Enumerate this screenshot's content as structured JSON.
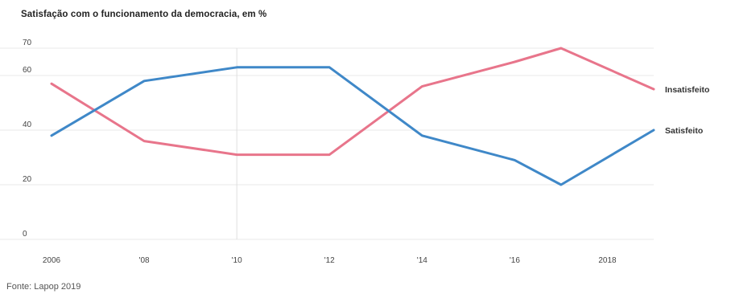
{
  "title": "Satisfação com o funcionamento da democracia, em %",
  "source": "Fonte: Lapop 2019",
  "colors": {
    "insatisfeito": "#e8758b",
    "satisfeito": "#3f88c8",
    "grid": "#e8e8e8",
    "highlight": "#dedede"
  },
  "chart_data": {
    "type": "line",
    "x": [
      2006,
      2008,
      2010,
      2012,
      2014,
      2016,
      2017,
      2019
    ],
    "x_ticks": [
      2006,
      2008,
      2010,
      2012,
      2014,
      2016,
      2018
    ],
    "x_tick_labels": [
      "2006",
      "'08",
      "'10",
      "'12",
      "'14",
      "'16",
      "2018"
    ],
    "y_ticks": [
      0,
      20,
      40,
      60,
      70
    ],
    "y_tick_labels": [
      "0",
      "20",
      "40",
      "60",
      "70"
    ],
    "ylim": [
      0,
      70
    ],
    "grid": true,
    "highlight_x": 2010,
    "series": [
      {
        "name": "Insatisfeito",
        "values": [
          57,
          36,
          31,
          31,
          56,
          65,
          70,
          55
        ]
      },
      {
        "name": "Satisfeito",
        "values": [
          38,
          58,
          63,
          63,
          38,
          29,
          20,
          40
        ]
      }
    ]
  }
}
